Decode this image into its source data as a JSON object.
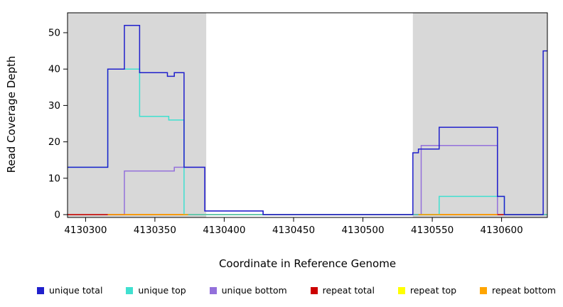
{
  "chart_data": {
    "type": "line",
    "subtype": "step",
    "title": "",
    "xlabel": "Coordinate in Reference Genome",
    "ylabel": "Read Coverage Depth",
    "xlim": [
      4130287,
      4130633
    ],
    "ylim": [
      0,
      55.5
    ],
    "x_ticks": [
      4130300,
      4130350,
      4130400,
      4130450,
      4130500,
      4130550,
      4130600
    ],
    "y_ticks": [
      0,
      10,
      20,
      30,
      40,
      50
    ],
    "grid": false,
    "plot_background": "#ffffff",
    "shaded_regions": [
      {
        "x0": 4130287,
        "x1": 4130387,
        "color": "#d8d8d8"
      },
      {
        "x0": 4130536,
        "x1": 4130633,
        "color": "#d8d8d8"
      }
    ],
    "series": [
      {
        "name": "repeat top",
        "color": "#ffff00",
        "points": [
          [
            4130287,
            0
          ],
          [
            4130633,
            0
          ]
        ]
      },
      {
        "name": "unique bottom",
        "color": "#9370db",
        "points": [
          [
            4130287,
            0
          ],
          [
            4130328,
            12
          ],
          [
            4130364,
            13
          ],
          [
            4130386,
            1
          ],
          [
            4130428,
            0
          ],
          [
            4130542,
            19
          ],
          [
            4130597,
            0
          ],
          [
            4130633,
            0
          ]
        ]
      },
      {
        "name": "repeat total",
        "color": "#cc0000",
        "points": [
          [
            4130287,
            0
          ],
          [
            4130633,
            0
          ]
        ]
      },
      {
        "name": "unique top",
        "color": "#40e0d0",
        "points": [
          [
            4130287,
            13
          ],
          [
            4130316,
            40
          ],
          [
            4130339,
            27
          ],
          [
            4130360,
            26
          ],
          [
            4130371,
            0
          ],
          [
            4130555,
            5
          ],
          [
            4130602,
            0
          ],
          [
            4130633,
            0
          ]
        ]
      },
      {
        "name": "repeat bottom",
        "color": "#ffa500",
        "points": [
          [
            4130316,
            0
          ],
          [
            4130374,
            0
          ],
          null,
          [
            4130540,
            0
          ],
          [
            4130597,
            0
          ]
        ]
      },
      {
        "name": "unique total",
        "color": "#2020cc",
        "points": [
          [
            4130287,
            13
          ],
          [
            4130316,
            40
          ],
          [
            4130328,
            52
          ],
          [
            4130339,
            39
          ],
          [
            4130359,
            38
          ],
          [
            4130364,
            39
          ],
          [
            4130371,
            13
          ],
          [
            4130386,
            1
          ],
          [
            4130428,
            0
          ],
          [
            4130536,
            17
          ],
          [
            4130540,
            18
          ],
          [
            4130555,
            24
          ],
          [
            4130597,
            5
          ],
          [
            4130602,
            0
          ],
          [
            4130630,
            45
          ],
          [
            4130633,
            45
          ]
        ]
      }
    ],
    "legend": {
      "position": "bottom",
      "items": [
        {
          "label": "unique total",
          "color": "#2020cc"
        },
        {
          "label": "unique top",
          "color": "#40e0d0"
        },
        {
          "label": "unique bottom",
          "color": "#9370db"
        },
        {
          "label": "repeat total",
          "color": "#cc0000"
        },
        {
          "label": "repeat top",
          "color": "#ffff00"
        },
        {
          "label": "repeat bottom",
          "color": "#ffa500"
        }
      ]
    }
  }
}
